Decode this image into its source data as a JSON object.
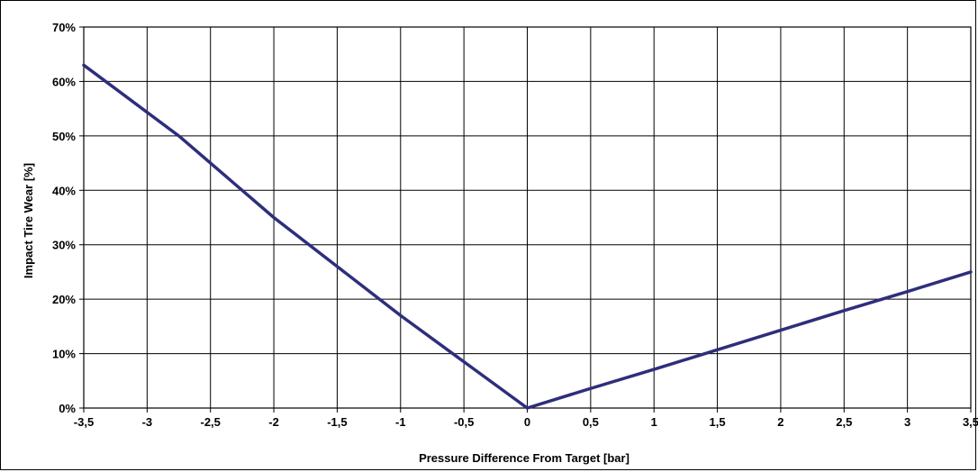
{
  "chart_data": {
    "type": "line",
    "xlabel": "Pressure Difference From Target [bar]",
    "ylabel": "Impact Tire Wear [%]",
    "xlim": [
      -3.5,
      3.5
    ],
    "ylim": [
      0,
      70
    ],
    "x_ticks": [
      "-3,5",
      "-3",
      "-2,5",
      "-2",
      "-1,5",
      "-1",
      "-0,5",
      "0",
      "0,5",
      "1",
      "1,5",
      "2",
      "2,5",
      "3",
      "3,5"
    ],
    "y_ticks": [
      "0%",
      "10%",
      "20%",
      "30%",
      "40%",
      "50%",
      "60%",
      "70%"
    ],
    "grid": true,
    "legend": false,
    "series": [
      {
        "color": "#2e2e7c",
        "x": [
          -3.5,
          -2.75,
          -2.0,
          -1.5,
          -1.0,
          -0.5,
          0.0,
          0.5,
          1.0,
          1.5,
          2.0,
          2.5,
          3.0,
          3.5
        ],
        "y": [
          63,
          50,
          35,
          26,
          17,
          8.5,
          0,
          3.6,
          7.1,
          10.7,
          14.3,
          17.9,
          21.4,
          25
        ]
      }
    ]
  }
}
